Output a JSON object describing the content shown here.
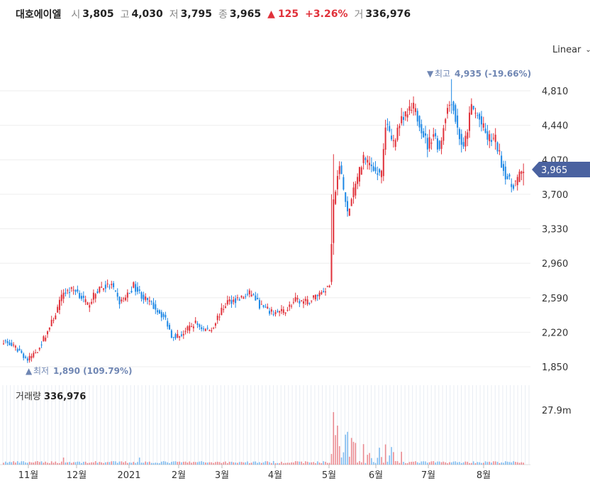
{
  "header": {
    "name": "대호에이엘",
    "open_label": "시",
    "open": "3,805",
    "high_label": "고",
    "high": "4,030",
    "low_label": "저",
    "low": "3,795",
    "close_label": "종",
    "close": "3,965",
    "change_arrow": "▲",
    "change": "125",
    "change_pct": "+3.26%",
    "volume_label": "거",
    "volume": "336,976"
  },
  "scale_selector": {
    "label": "Linear",
    "chevron_icon": "chevron-down-icon"
  },
  "colors": {
    "up": "#e0313a",
    "down": "#1e88e5",
    "marker": "#6f86b3",
    "price_tag": "#4a62a0",
    "grid": "#eeeeee",
    "volume_grid": "#e8ecf3"
  },
  "chart_data": {
    "type": "candlestick",
    "y_ticks": [
      "4,810",
      "4,440",
      "4,070",
      "3,700",
      "3,330",
      "2,960",
      "2,590",
      "2,220",
      "1,850"
    ],
    "y_tick_values": [
      4810,
      4440,
      4070,
      3700,
      3330,
      2960,
      2590,
      2220,
      1850
    ],
    "ylim": [
      1850,
      4810
    ],
    "x_ticks": [
      "11월",
      "12월",
      "2021",
      "2월",
      "3월",
      "4월",
      "5월",
      "6월",
      "7월",
      "8월"
    ],
    "last_price": {
      "label": "3,965",
      "value": 3965
    },
    "max_marker": {
      "arrow": "▼",
      "label": "최고",
      "value": "4,935",
      "pct": "(-19.66%)"
    },
    "min_marker": {
      "arrow": "▲",
      "label": "최저",
      "value": "1,890",
      "pct": "(109.79%)"
    },
    "volume": {
      "title": "거래량",
      "value": "336,976",
      "axis_tick": "27.9m"
    },
    "anchors": [
      [
        0,
        2130
      ],
      [
        8,
        2020
      ],
      [
        12,
        1920
      ],
      [
        17,
        2030
      ],
      [
        22,
        2230
      ],
      [
        26,
        2420
      ],
      [
        30,
        2650
      ],
      [
        36,
        2680
      ],
      [
        42,
        2510
      ],
      [
        48,
        2700
      ],
      [
        54,
        2720
      ],
      [
        58,
        2540
      ],
      [
        62,
        2620
      ],
      [
        65,
        2720
      ],
      [
        70,
        2590
      ],
      [
        76,
        2480
      ],
      [
        81,
        2360
      ],
      [
        84,
        2190
      ],
      [
        88,
        2180
      ],
      [
        92,
        2250
      ],
      [
        96,
        2320
      ],
      [
        100,
        2250
      ],
      [
        104,
        2250
      ],
      [
        107,
        2380
      ],
      [
        112,
        2550
      ],
      [
        118,
        2580
      ],
      [
        124,
        2640
      ],
      [
        128,
        2510
      ],
      [
        134,
        2430
      ],
      [
        140,
        2440
      ],
      [
        146,
        2560
      ],
      [
        152,
        2540
      ],
      [
        156,
        2610
      ],
      [
        160,
        2670
      ],
      [
        163,
        2730
      ],
      [
        165,
        3600
      ],
      [
        168,
        4020
      ],
      [
        172,
        3480
      ],
      [
        176,
        3800
      ],
      [
        180,
        4100
      ],
      [
        184,
        4000
      ],
      [
        189,
        3900
      ],
      [
        191,
        4470
      ],
      [
        195,
        4250
      ],
      [
        198,
        4470
      ],
      [
        202,
        4560
      ],
      [
        205,
        4620
      ],
      [
        208,
        4480
      ],
      [
        212,
        4220
      ],
      [
        215,
        4360
      ],
      [
        218,
        4180
      ],
      [
        221,
        4560
      ],
      [
        224,
        4720
      ],
      [
        227,
        4400
      ],
      [
        230,
        4170
      ],
      [
        234,
        4640
      ],
      [
        238,
        4500
      ],
      [
        242,
        4300
      ],
      [
        246,
        4280
      ],
      [
        250,
        3960
      ],
      [
        254,
        3790
      ],
      [
        257,
        3860
      ],
      [
        260,
        3965
      ]
    ]
  }
}
